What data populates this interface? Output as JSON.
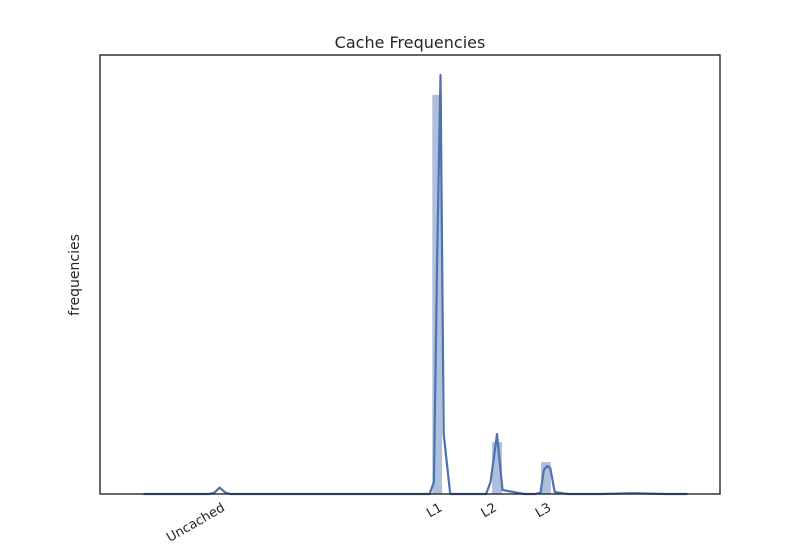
{
  "chart_data": {
    "type": "bar",
    "title": "Cache Frequencies",
    "xlabel": "",
    "ylabel": "frequencies",
    "grid": false,
    "legend": "none",
    "y_ticks_shown": false,
    "xlim": [
      -2.1,
      3.6
    ],
    "ylim": [
      0,
      1.1
    ],
    "x_ticks": [
      {
        "label": "Uncached",
        "x": -1.0
      },
      {
        "label": "L1",
        "x": 1.0
      },
      {
        "label": "L2",
        "x": 1.5
      },
      {
        "label": "L3",
        "x": 2.0
      }
    ],
    "histogram": {
      "color": "#4c72b0",
      "bin_width": 0.09,
      "bars": [
        {
          "x": 1.0,
          "value": 1.0
        },
        {
          "x": 1.55,
          "value": 0.13
        },
        {
          "x": 2.0,
          "value": 0.08
        }
      ]
    },
    "kde": {
      "color": "#4c72b0",
      "x": [
        -1.7,
        -1.1,
        -1.05,
        -1.0,
        -0.95,
        -0.9,
        -0.8,
        0.85,
        0.93,
        0.97,
        1.0,
        1.03,
        1.06,
        1.12,
        1.2,
        1.4,
        1.45,
        1.49,
        1.52,
        1.55,
        1.6,
        1.8,
        1.9,
        1.95,
        1.98,
        2.01,
        2.04,
        2.08,
        2.2,
        2.5,
        2.8,
        3.1,
        3.3
      ],
      "y": [
        0,
        0,
        0.003,
        0.016,
        0.004,
        0,
        0,
        0,
        0,
        0.03,
        0.6,
        1.05,
        0.15,
        0,
        0,
        0,
        0,
        0.03,
        0.09,
        0.15,
        0.01,
        0,
        0,
        0.003,
        0.06,
        0.07,
        0.065,
        0.005,
        0,
        0,
        0.002,
        0,
        0
      ]
    }
  }
}
